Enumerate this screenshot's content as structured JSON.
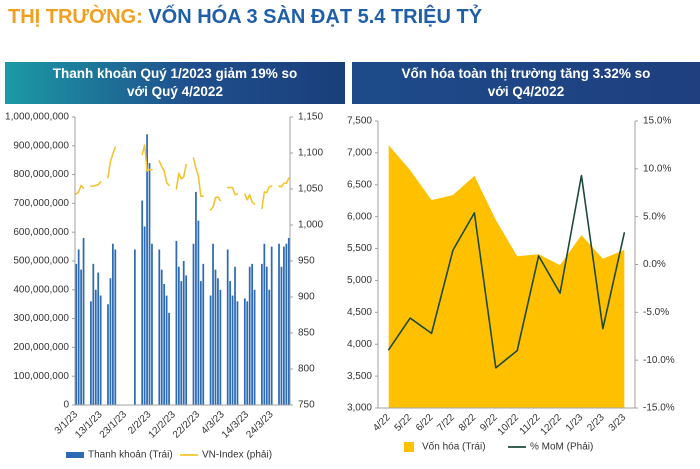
{
  "header": {
    "label": "THỊ TRƯỜNG:",
    "title": "VỐN HÓA 3 SÀN ĐẠT 5.4 TRIỆU TỶ"
  },
  "chart_data": [
    {
      "type": "combo",
      "title": "Thanh khoản Quý 1/2023 giảm 19% so với Quý 4/2022",
      "categories": [
        "3/1/23",
        null,
        null,
        null,
        null,
        null,
        null,
        null,
        null,
        null,
        "13/1/23",
        null,
        null,
        null,
        null,
        null,
        null,
        null,
        null,
        null,
        "23/1/23",
        null,
        null,
        null,
        null,
        null,
        null,
        null,
        null,
        null,
        "2/2/23",
        null,
        null,
        null,
        null,
        null,
        null,
        null,
        null,
        null,
        "12/2/23",
        null,
        null,
        null,
        null,
        null,
        null,
        null,
        null,
        null,
        "22/2/23",
        null,
        null,
        null,
        null,
        null,
        null,
        null,
        null,
        null,
        "4/3/23",
        null,
        null,
        null,
        null,
        null,
        null,
        null,
        null,
        null,
        "14/3/23",
        null,
        null,
        null,
        null,
        null,
        null,
        null,
        null,
        null,
        "24/3/23",
        null,
        null,
        null,
        null,
        null,
        null,
        null
      ],
      "series": [
        {
          "name": "Thanh khoản (Trái)",
          "type": "bar",
          "color": "#2d6cb5",
          "values": [
            490000000,
            540000000,
            470000000,
            580000000,
            null,
            null,
            360000000,
            490000000,
            400000000,
            460000000,
            380000000,
            null,
            null,
            350000000,
            440000000,
            560000000,
            540000000,
            null,
            null,
            null,
            null,
            null,
            null,
            null,
            540000000,
            null,
            null,
            710000000,
            620000000,
            940000000,
            840000000,
            560000000,
            null,
            null,
            540000000,
            470000000,
            420000000,
            380000000,
            320000000,
            null,
            null,
            570000000,
            480000000,
            430000000,
            500000000,
            450000000,
            null,
            null,
            560000000,
            740000000,
            640000000,
            430000000,
            490000000,
            null,
            null,
            380000000,
            560000000,
            470000000,
            440000000,
            400000000,
            null,
            null,
            540000000,
            430000000,
            380000000,
            480000000,
            360000000,
            null,
            null,
            370000000,
            360000000,
            480000000,
            490000000,
            400000000,
            null,
            null,
            490000000,
            560000000,
            480000000,
            400000000,
            550000000,
            null,
            null,
            560000000,
            480000000,
            550000000,
            560000000,
            580000000
          ]
        },
        {
          "name": "VN-Index (phải)",
          "type": "line",
          "axis": "y2",
          "color": "#f4c430",
          "values": [
            1043,
            1046,
            1055,
            1051,
            null,
            null,
            1054,
            1054,
            1055,
            1056,
            1060,
            null,
            null,
            1066,
            1088,
            1099,
            1108,
            null,
            null,
            null,
            null,
            null,
            null,
            null,
            1117,
            null,
            null,
            1098,
            1111,
            1075,
            1077,
            1077,
            null,
            null,
            1089,
            1081,
            1075,
            1059,
            1055,
            null,
            null,
            1050,
            1072,
            1064,
            1067,
            1084,
            null,
            null,
            1093,
            1079,
            1068,
            1040,
            1040,
            null,
            null,
            1021,
            1025,
            1038,
            1039,
            1034,
            null,
            null,
            1052,
            1052,
            1052,
            1042,
            1043,
            null,
            null,
            1043,
            1035,
            1042,
            1032,
            1029,
            null,
            null,
            1023,
            1046,
            1045,
            1053,
            1054,
            null,
            null,
            1054,
            1053,
            1058,
            1058,
            1065
          ]
        }
      ],
      "ylim": [
        0,
        1000000000
      ],
      "yticks": [
        0,
        {
          "value": 100000000,
          "label": "100,000,000"
        },
        {
          "value": 200000000,
          "label": "200,000,000"
        },
        {
          "value": 300000000,
          "label": "300,000,000"
        },
        {
          "value": 400000000,
          "label": "400,000,000"
        },
        {
          "value": 500000000,
          "label": "500,000,000"
        },
        {
          "value": 600000000,
          "label": "600,000,000"
        },
        {
          "value": 700000000,
          "label": "700,000,000"
        },
        {
          "value": 800000000,
          "label": "800,000,000"
        },
        {
          "value": 900000000,
          "label": "900,000,000"
        },
        {
          "value": 1000000000,
          "label": "1,000,000,000"
        }
      ],
      "y2lim": [
        750,
        1150
      ],
      "y2ticks": [
        750,
        800,
        850,
        900,
        950,
        {
          "value": 1000,
          "label": "1,000"
        },
        {
          "value": 1050,
          "label": "1,050"
        },
        {
          "value": 1100,
          "label": "1,100"
        },
        {
          "value": 1150,
          "label": "1,150"
        }
      ],
      "grid": false,
      "legend": "bottom"
    },
    {
      "type": "combo",
      "title": "Vốn hóa toàn thị trường tăng 3.32% so với Q4/2022",
      "categories": [
        "4/22",
        "5/22",
        "6/22",
        "7/22",
        "8/22",
        "9/22",
        "10/22",
        "11/22",
        "12/22",
        "1/23",
        "2/23",
        "3/23"
      ],
      "series": [
        {
          "name": "Vốn hóa (Trái)",
          "type": "area",
          "color": "#ffc000",
          "values": [
            7120,
            6730,
            6260,
            6340,
            6640,
            5950,
            5380,
            5410,
            5240,
            5710,
            5340,
            5480
          ]
        },
        {
          "name": "% MoM (Phải)",
          "type": "line",
          "axis": "y2",
          "color": "#1e4a3a",
          "values": [
            -8.9,
            -5.6,
            -7.2,
            1.5,
            5.4,
            -10.8,
            -9.0,
            0.9,
            -3.0,
            9.3,
            -6.7,
            3.3
          ]
        }
      ],
      "ylim": [
        3000,
        7500
      ],
      "yticks": [
        {
          "value": 3000,
          "label": "3,000"
        },
        {
          "value": 3500,
          "label": "3,500"
        },
        {
          "value": 4000,
          "label": "4,000"
        },
        {
          "value": 4500,
          "label": "4,500"
        },
        {
          "value": 5000,
          "label": "5,000"
        },
        {
          "value": 5500,
          "label": "5,500"
        },
        {
          "value": 6000,
          "label": "6,000"
        },
        {
          "value": 6500,
          "label": "6,500"
        },
        {
          "value": 7000,
          "label": "7,000"
        },
        {
          "value": 7500,
          "label": "7,500"
        }
      ],
      "y2lim": [
        -15,
        15
      ],
      "y2ticks": [
        {
          "value": -15,
          "label": "-15.0%"
        },
        {
          "value": -10,
          "label": "-10.0%"
        },
        {
          "value": -5,
          "label": "-5.0%"
        },
        {
          "value": 0,
          "label": "0.0%"
        },
        {
          "value": 5,
          "label": "5.0%"
        },
        {
          "value": 10,
          "label": "10.0%"
        },
        {
          "value": 15,
          "label": "15.0%"
        }
      ],
      "grid": false,
      "legend": "bottom"
    }
  ]
}
